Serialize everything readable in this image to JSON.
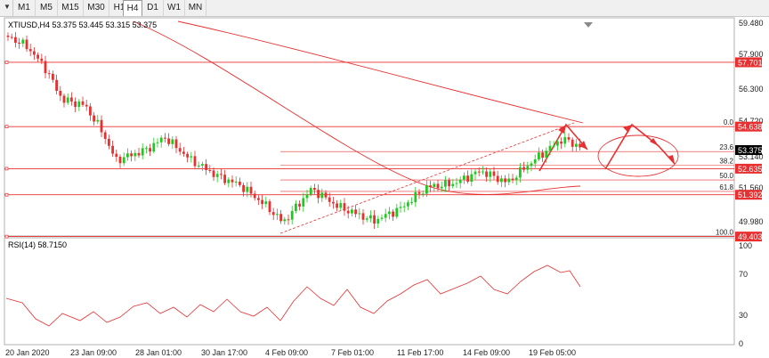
{
  "toolbar": {
    "menu_icon": "dropdown-triangle-icon",
    "timeframes": [
      "M1",
      "M5",
      "M15",
      "M30",
      "H1",
      "H4",
      "D1",
      "W1",
      "MN"
    ],
    "active": "H4"
  },
  "chart": {
    "symbol_info": "XTIUSD,H4  53.375 53.445 53.315 53.375",
    "current_price": "53.375",
    "price_axis": [
      "59.480",
      "57.900",
      "56.300",
      "54.720",
      "53.140",
      "51.560",
      "49.980"
    ],
    "h_lines": [
      {
        "price": 57.701,
        "label": "57.701"
      },
      {
        "price": 54.638,
        "label": "54.638"
      },
      {
        "price": 52.635,
        "label": "52.635"
      },
      {
        "price": 51.392,
        "label": "51.392"
      },
      {
        "price": 49.403,
        "label": "49.403"
      }
    ],
    "fib_levels": [
      {
        "pct": "0.0",
        "price": 54.638
      },
      {
        "pct": "23.6",
        "price": 53.45
      },
      {
        "pct": "38.2",
        "price": 52.8
      },
      {
        "pct": "50.0",
        "price": 52.1
      },
      {
        "pct": "61.8",
        "price": 51.55
      },
      {
        "pct": "100.0",
        "price": 49.403
      }
    ],
    "time_axis": [
      "20 Jan 2020",
      "23 Jan 09:00",
      "28 Jan 01:00",
      "30 Jan 17:00",
      "4 Feb 09:00",
      "7 Feb 01:00",
      "11 Feb 17:00",
      "14 Feb 09:00",
      "19 Feb 05:00"
    ],
    "colors": {
      "up": "#1fc91f",
      "down": "#e83030",
      "line": "#e83030",
      "price_label": "#e83030",
      "current_label": "#000000"
    }
  },
  "indicator": {
    "label": "RSI(14) 58.7150",
    "levels": [
      "100",
      "70",
      "30",
      "0"
    ]
  }
}
